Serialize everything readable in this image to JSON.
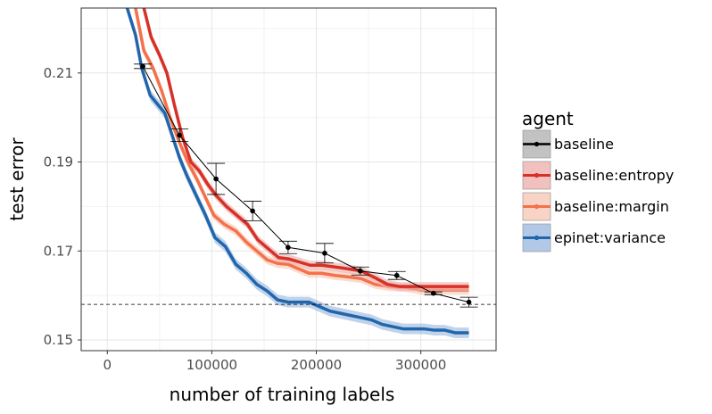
{
  "chart_data": {
    "type": "line",
    "title": "",
    "xlabel": "number of training labels",
    "ylabel": "test error",
    "xlim": [
      -25000,
      372000
    ],
    "ylim": [
      0.1476,
      0.2246
    ],
    "xticks": [
      0,
      100000,
      200000,
      300000
    ],
    "xtick_labels": [
      "0",
      "100000",
      "200000",
      "300000"
    ],
    "yticks": [
      0.15,
      0.17,
      0.19,
      0.21
    ],
    "ytick_labels": [
      "0.15",
      "0.17",
      "0.19",
      "0.21"
    ],
    "grid": true,
    "reference_line": {
      "y": 0.158,
      "style": "dashed",
      "color": "#000000"
    },
    "legend": {
      "title": "agent",
      "position": "right",
      "entries": [
        "baseline",
        "baseline:entropy",
        "baseline:margin",
        "epinet:variance"
      ]
    },
    "series": [
      {
        "name": "epinet:variance",
        "color": "#2166ac",
        "band_color": "#9ebbe0",
        "x": [
          19000,
          27000,
          33000,
          41000,
          48000,
          55000,
          62000,
          69000,
          76000,
          85000,
          94000,
          103000,
          113000,
          123000,
          133000,
          143000,
          153000,
          163000,
          173000,
          183000,
          193000,
          203000,
          213000,
          223000,
          233000,
          243000,
          253000,
          263000,
          273000,
          283000,
          293000,
          303000,
          313000,
          323000,
          333000,
          346000
        ],
        "y": [
          0.2246,
          0.2185,
          0.211,
          0.205,
          0.203,
          0.201,
          0.196,
          0.191,
          0.187,
          0.1825,
          0.178,
          0.173,
          0.171,
          0.167,
          0.165,
          0.1625,
          0.161,
          0.159,
          0.1585,
          0.1585,
          0.1585,
          0.1575,
          0.1565,
          0.156,
          0.1555,
          0.155,
          0.1545,
          0.1535,
          0.153,
          0.1525,
          0.1525,
          0.1525,
          0.1522,
          0.1522,
          0.1516,
          0.1516
        ],
        "band": 0.0012
      },
      {
        "name": "baseline:margin",
        "color": "#f4714a",
        "band_color": "#f8c9b8",
        "x": [
          27000,
          35000,
          44000,
          52000,
          60000,
          68000,
          77000,
          86000,
          94000,
          102000,
          112000,
          123000,
          133000,
          143000,
          153000,
          163000,
          173000,
          183000,
          193000,
          205000,
          218000,
          230000,
          243000,
          256000,
          270000,
          285000,
          300000,
          320000,
          346000
        ],
        "y": [
          0.2246,
          0.215,
          0.211,
          0.206,
          0.2,
          0.195,
          0.19,
          0.186,
          0.182,
          0.178,
          0.176,
          0.1745,
          0.172,
          0.17,
          0.168,
          0.1672,
          0.167,
          0.166,
          0.165,
          0.165,
          0.1645,
          0.1642,
          0.1638,
          0.1625,
          0.162,
          0.1618,
          0.1612,
          0.1612,
          0.1612
        ],
        "band": 0.001
      },
      {
        "name": "baseline:entropy",
        "color": "#d73027",
        "band_color": "#ecb2ae",
        "x": [
          35000,
          42000,
          50000,
          57000,
          64000,
          72000,
          80000,
          88000,
          96000,
          104000,
          114000,
          124000,
          134000,
          144000,
          154000,
          164000,
          174000,
          184000,
          194000,
          205000,
          218000,
          230000,
          243000,
          256000,
          268000,
          280000,
          300000,
          320000,
          346000
        ],
        "y": [
          0.2246,
          0.218,
          0.214,
          0.21,
          0.203,
          0.1955,
          0.19,
          0.188,
          0.185,
          0.1825,
          0.18,
          0.178,
          0.176,
          0.1725,
          0.1705,
          0.1685,
          0.1682,
          0.1675,
          0.1668,
          0.1668,
          0.1664,
          0.166,
          0.1655,
          0.164,
          0.1625,
          0.162,
          0.162,
          0.162,
          0.162
        ],
        "band": 0.001
      },
      {
        "name": "baseline",
        "color": "#000000",
        "band_color": "#b3b3b3",
        "x": [
          34000,
          69000,
          104000,
          139000,
          173000,
          208000,
          242000,
          277000,
          312000,
          346000
        ],
        "y": [
          0.2115,
          0.196,
          0.1862,
          0.179,
          0.1708,
          0.1695,
          0.1655,
          0.1645,
          0.1605,
          0.1585
        ],
        "err": [
          0.0005,
          0.0014,
          0.0035,
          0.0022,
          0.0014,
          0.0022,
          0.0009,
          0.0009,
          0.0003,
          0.0011
        ]
      }
    ]
  }
}
